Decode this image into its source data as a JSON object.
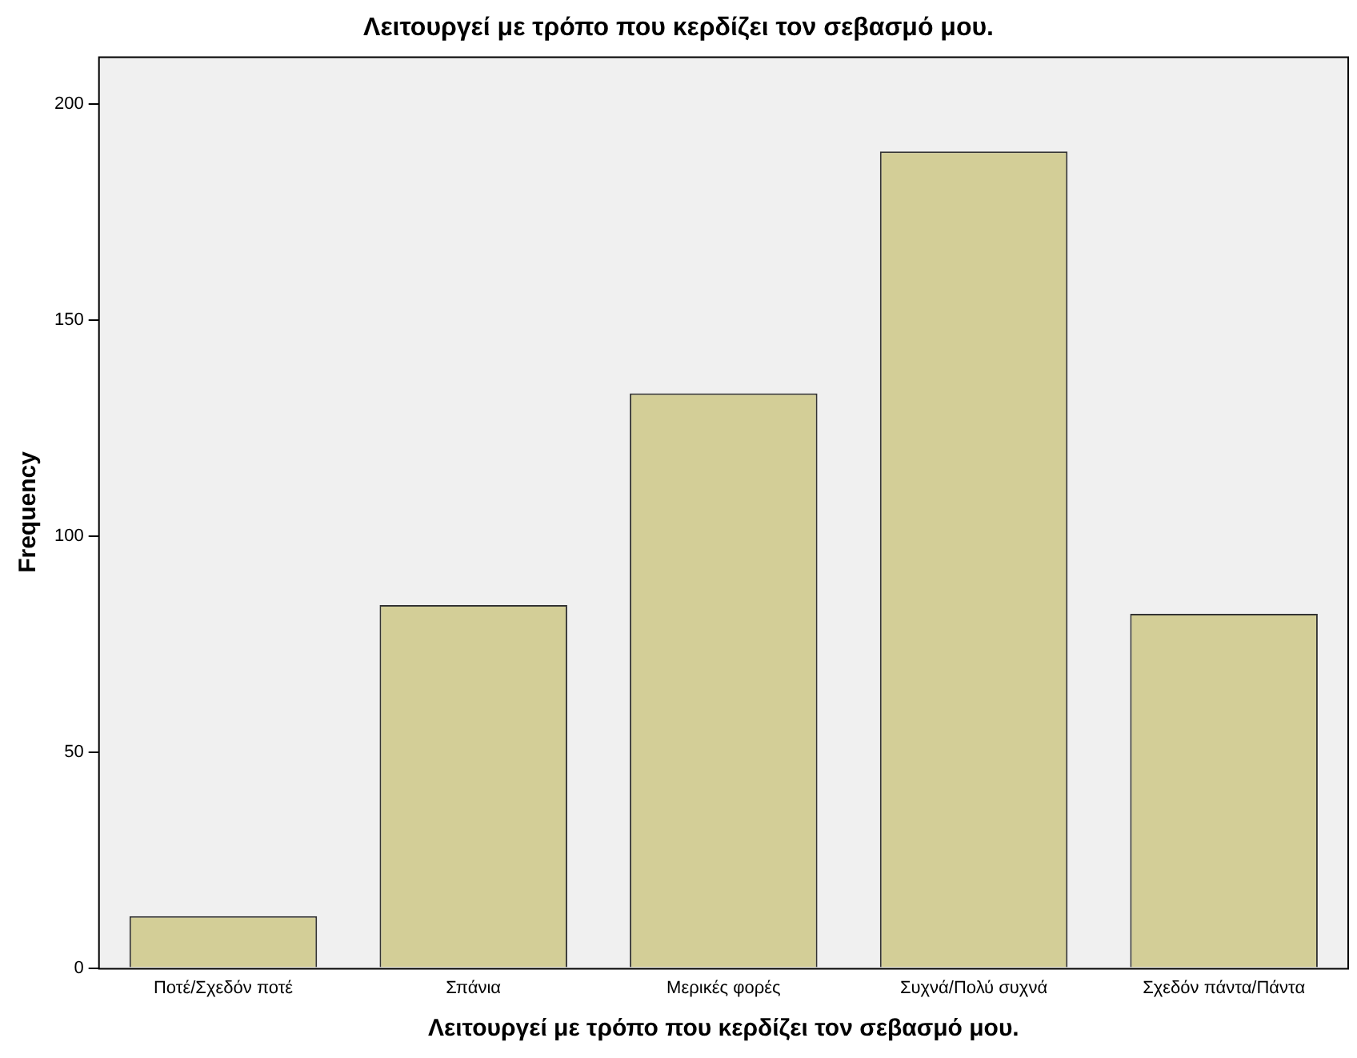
{
  "chart_data": {
    "type": "bar",
    "title": "Λειτουργεί με τρόπο που κερδίζει τον σεβασμό μου.",
    "xlabel": "Λειτουργεί με τρόπο που κερδίζει τον σεβασμό μου.",
    "ylabel": "Frequency",
    "categories": [
      "Ποτέ/Σχεδόν ποτέ",
      "Σπάνια",
      "Μερικές φορές",
      "Συχνά/Πολύ συχνά",
      "Σχεδόν πάντα/Πάντα"
    ],
    "values": [
      12,
      84,
      133,
      189,
      82
    ],
    "color": "#d3ce97",
    "ylim": [
      0,
      211
    ],
    "yticks": [
      0,
      50,
      100,
      150,
      200
    ],
    "grid": false,
    "legend": false
  }
}
